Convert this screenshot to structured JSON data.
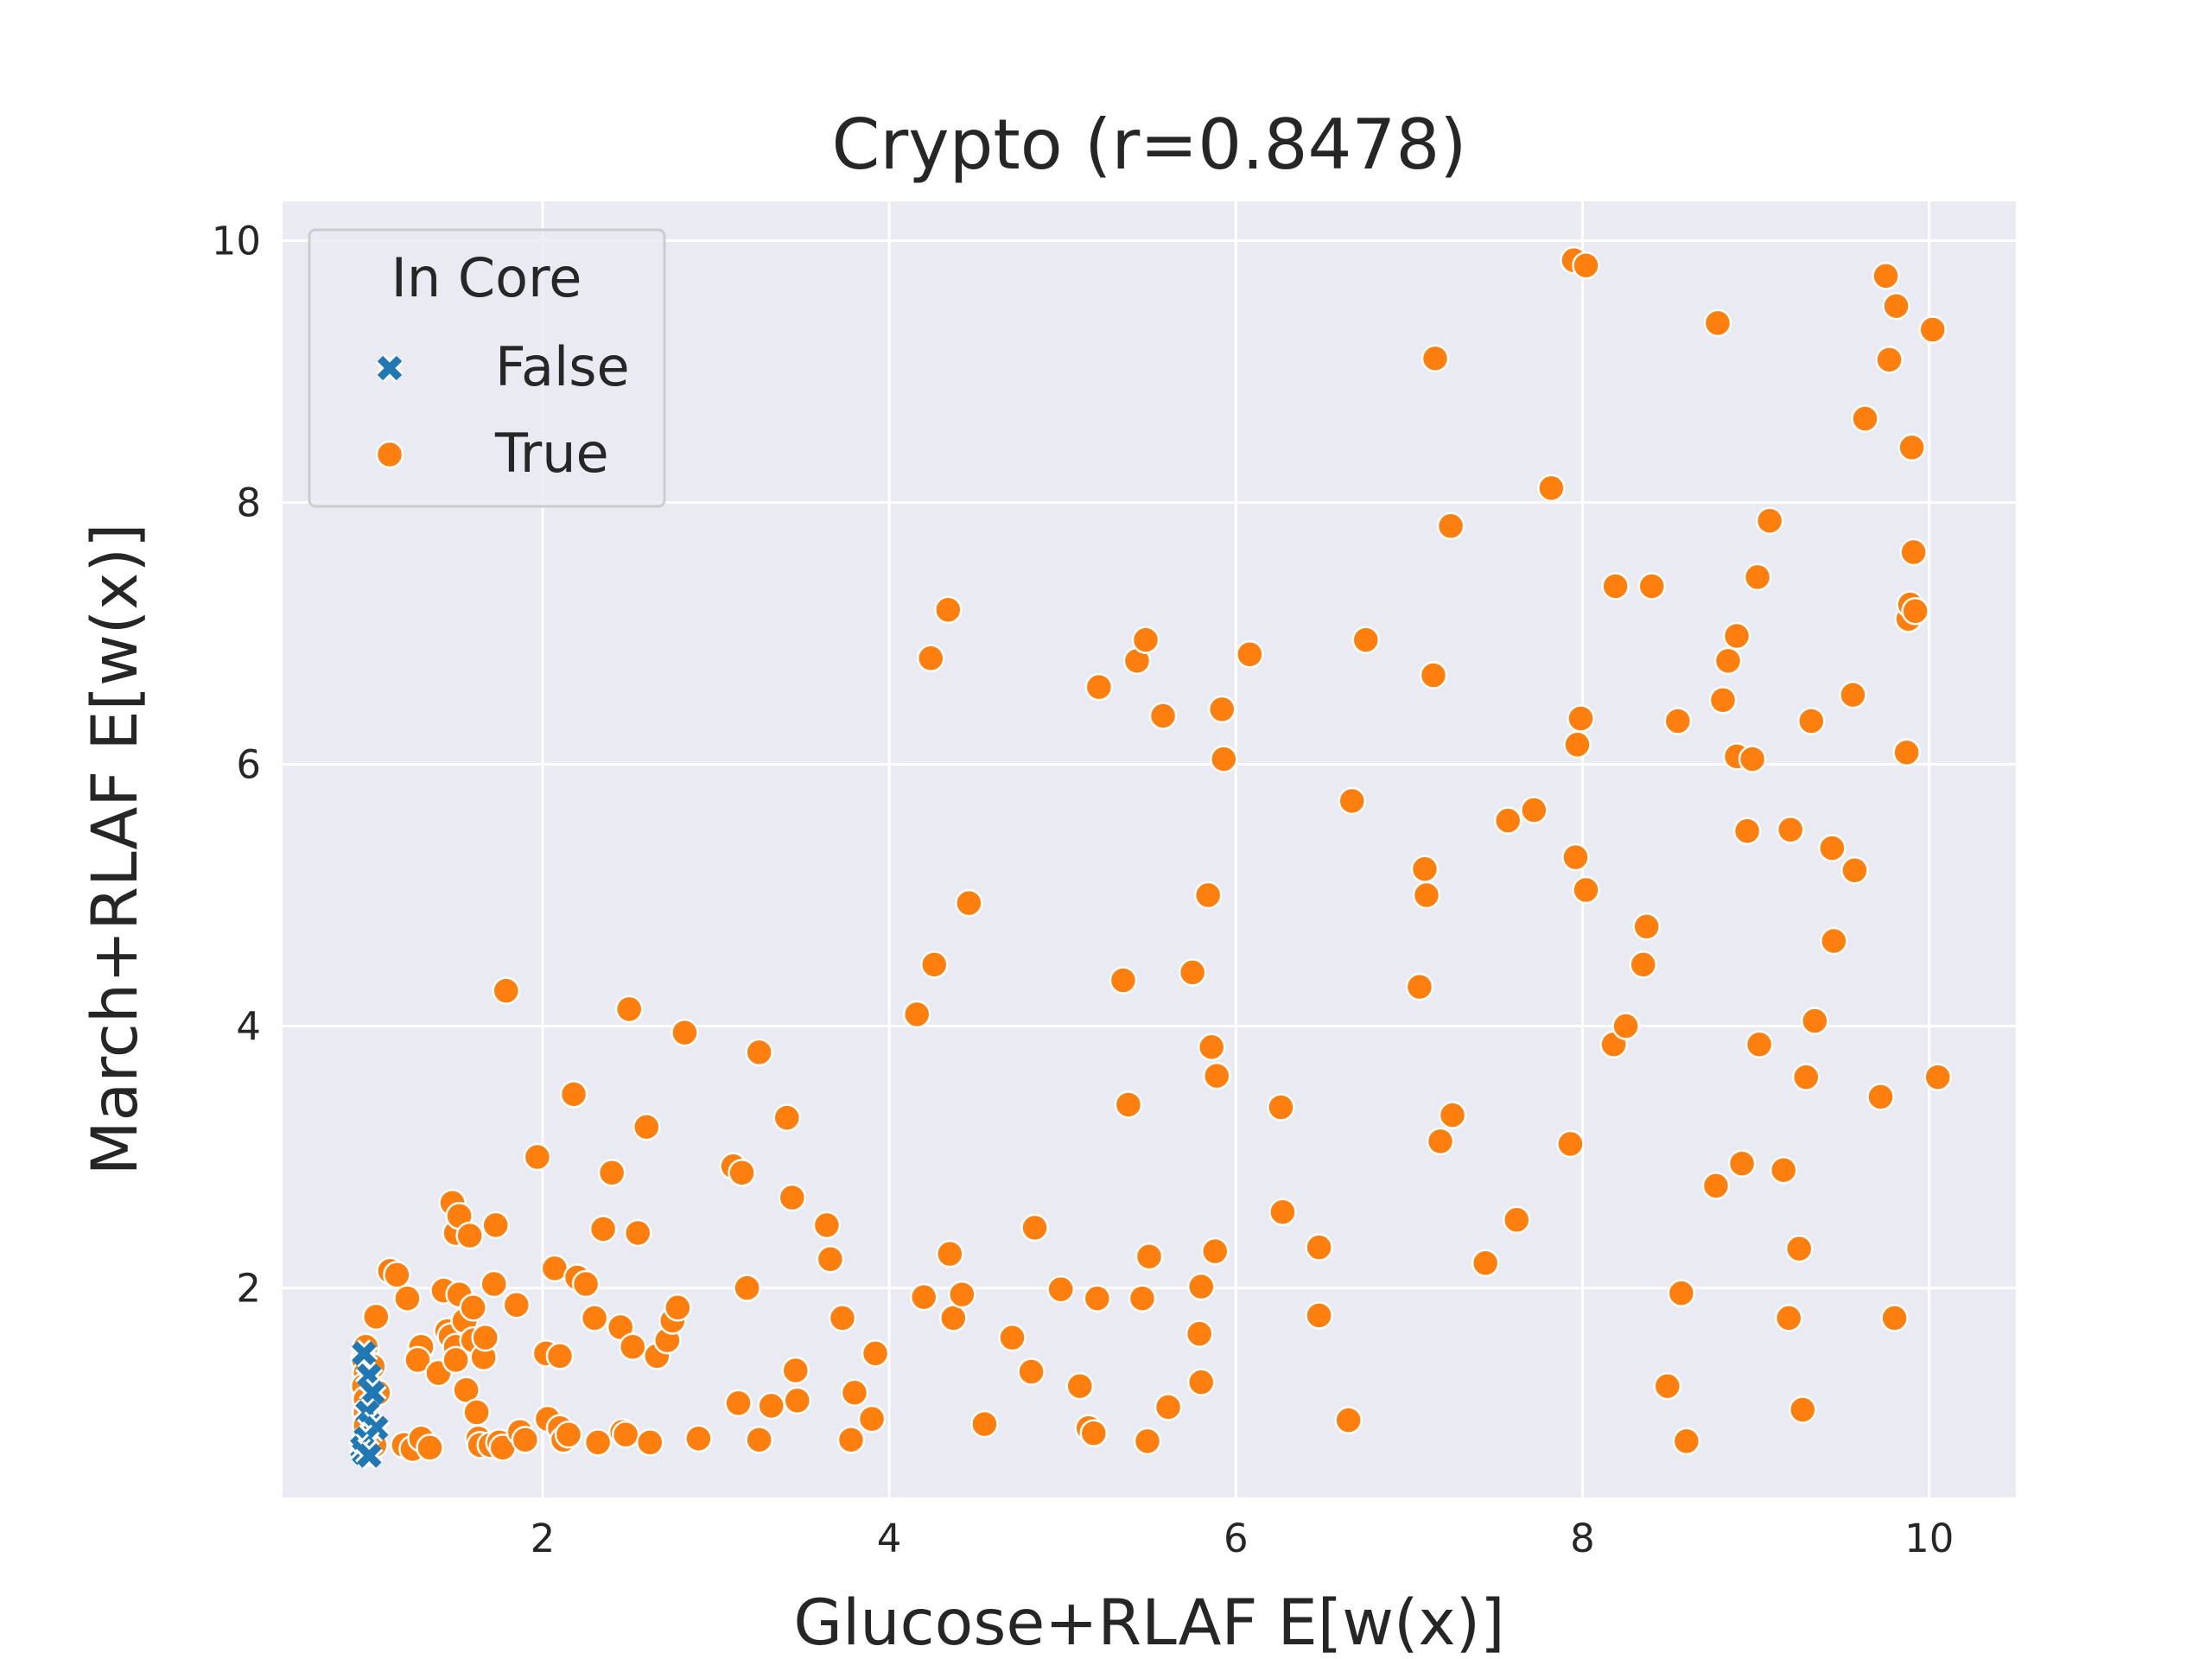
{
  "chart_data": {
    "type": "scatter",
    "title": "Crypto (r=0.8478)",
    "xlabel": "Glucose+RLAF E[w(x)]",
    "ylabel": "March+RLAF E[w(x)]",
    "xlim": [
      0.5,
      10.5
    ],
    "ylim": [
      0.4,
      10.3
    ],
    "x_ticks": [
      "2",
      "4",
      "6",
      "8",
      "10"
    ],
    "x_tick_values": [
      2,
      4,
      6,
      8,
      10
    ],
    "y_ticks": [
      "2",
      "4",
      "6",
      "8",
      "10"
    ],
    "y_tick_values": [
      2,
      4,
      6,
      8,
      10
    ],
    "grid": true,
    "background": "#eaeaf2",
    "legend": {
      "title": "In Core",
      "placement": "top-left",
      "entries": [
        {
          "label": "False",
          "marker": "x",
          "color": "#1f77b4"
        },
        {
          "label": "True",
          "marker": "circle",
          "color": "#ff7f0e"
        }
      ]
    },
    "series": [
      {
        "name": "False",
        "marker": "x",
        "color": "#1f77b4",
        "points": [
          [
            0.97,
            1.5
          ],
          [
            1.0,
            1.33
          ],
          [
            1.02,
            1.2
          ],
          [
            0.99,
            1.05
          ],
          [
            1.01,
            0.95
          ],
          [
            1.04,
            0.93
          ],
          [
            0.98,
            0.85
          ],
          [
            0.96,
            0.78
          ],
          [
            0.97,
            0.74
          ],
          [
            1.0,
            0.72
          ]
        ]
      },
      {
        "name": "True",
        "marker": "circle",
        "color": "#ff7f0e",
        "points": [
          [
            0.98,
            1.55
          ],
          [
            0.97,
            1.45
          ],
          [
            0.98,
            1.35
          ],
          [
            0.97,
            1.25
          ],
          [
            0.98,
            1.15
          ],
          [
            0.98,
            1.05
          ],
          [
            0.98,
            0.95
          ],
          [
            0.98,
            0.85
          ],
          [
            0.98,
            0.76
          ],
          [
            1.02,
            1.4
          ],
          [
            1.05,
            1.2
          ],
          [
            1.03,
            0.8
          ],
          [
            1.04,
            1.78
          ],
          [
            1.12,
            2.13
          ],
          [
            1.16,
            2.1
          ],
          [
            1.22,
            1.92
          ],
          [
            1.3,
            1.55
          ],
          [
            1.28,
            1.45
          ],
          [
            1.2,
            0.8
          ],
          [
            1.25,
            0.77
          ],
          [
            1.3,
            0.85
          ],
          [
            1.35,
            0.78
          ],
          [
            1.4,
            1.35
          ],
          [
            1.43,
            1.98
          ],
          [
            1.45,
            1.67
          ],
          [
            1.47,
            1.63
          ],
          [
            1.48,
            2.65
          ],
          [
            1.5,
            2.42
          ],
          [
            1.52,
            2.55
          ],
          [
            1.5,
            1.55
          ],
          [
            1.5,
            1.45
          ],
          [
            1.52,
            1.95
          ],
          [
            1.55,
            1.75
          ],
          [
            1.56,
            1.22
          ],
          [
            1.58,
            2.4
          ],
          [
            1.6,
            1.85
          ],
          [
            1.6,
            1.6
          ],
          [
            1.62,
            1.05
          ],
          [
            1.63,
            0.85
          ],
          [
            1.64,
            0.8
          ],
          [
            1.66,
            1.47
          ],
          [
            1.67,
            1.62
          ],
          [
            1.7,
            0.8
          ],
          [
            1.72,
            2.03
          ],
          [
            1.73,
            2.48
          ],
          [
            1.75,
            0.82
          ],
          [
            1.77,
            0.78
          ],
          [
            1.79,
            4.27
          ],
          [
            1.85,
            1.87
          ],
          [
            1.87,
            0.9
          ],
          [
            1.9,
            0.84
          ],
          [
            1.97,
            3.0
          ],
          [
            2.02,
            1.5
          ],
          [
            2.03,
            1.0
          ],
          [
            2.07,
            2.15
          ],
          [
            2.1,
            1.48
          ],
          [
            2.1,
            0.93
          ],
          [
            2.12,
            0.84
          ],
          [
            2.15,
            0.88
          ],
          [
            2.18,
            3.48
          ],
          [
            2.2,
            2.08
          ],
          [
            2.25,
            2.03
          ],
          [
            2.3,
            1.77
          ],
          [
            2.32,
            0.82
          ],
          [
            2.35,
            2.45
          ],
          [
            2.4,
            2.88
          ],
          [
            2.45,
            1.7
          ],
          [
            2.46,
            0.9
          ],
          [
            2.48,
            0.88
          ],
          [
            2.5,
            4.13
          ],
          [
            2.52,
            1.55
          ],
          [
            2.55,
            2.42
          ],
          [
            2.6,
            3.23
          ],
          [
            2.62,
            0.82
          ],
          [
            2.66,
            1.48
          ],
          [
            2.72,
            1.6
          ],
          [
            2.75,
            1.75
          ],
          [
            2.78,
            1.85
          ],
          [
            2.82,
            3.95
          ],
          [
            2.9,
            0.85
          ],
          [
            3.1,
            2.93
          ],
          [
            3.13,
            1.12
          ],
          [
            3.15,
            2.88
          ],
          [
            3.18,
            2.0
          ],
          [
            3.25,
            3.8
          ],
          [
            3.25,
            0.84
          ],
          [
            3.32,
            1.1
          ],
          [
            3.41,
            3.3
          ],
          [
            3.44,
            2.69
          ],
          [
            3.46,
            1.37
          ],
          [
            3.47,
            1.14
          ],
          [
            3.64,
            2.48
          ],
          [
            3.66,
            2.22
          ],
          [
            3.73,
            1.77
          ],
          [
            3.78,
            0.84
          ],
          [
            3.8,
            1.2
          ],
          [
            3.9,
            1.0
          ],
          [
            3.92,
            1.5
          ],
          [
            4.16,
            4.09
          ],
          [
            4.2,
            1.93
          ],
          [
            4.24,
            6.81
          ],
          [
            4.26,
            4.47
          ],
          [
            4.34,
            7.18
          ],
          [
            4.35,
            2.26
          ],
          [
            4.37,
            1.77
          ],
          [
            4.42,
            1.95
          ],
          [
            4.46,
            4.94
          ],
          [
            4.55,
            0.96
          ],
          [
            4.71,
            1.62
          ],
          [
            4.82,
            1.36
          ],
          [
            4.84,
            2.46
          ],
          [
            4.99,
            1.99
          ],
          [
            5.1,
            1.25
          ],
          [
            5.15,
            0.93
          ],
          [
            5.18,
            0.89
          ],
          [
            5.2,
            1.92
          ],
          [
            5.21,
            6.59
          ],
          [
            5.35,
            4.35
          ],
          [
            5.38,
            3.4
          ],
          [
            5.43,
            6.79
          ],
          [
            5.46,
            1.92
          ],
          [
            5.48,
            6.95
          ],
          [
            5.49,
            0.83
          ],
          [
            5.5,
            2.24
          ],
          [
            5.58,
            6.37
          ],
          [
            5.61,
            1.09
          ],
          [
            5.75,
            4.41
          ],
          [
            5.79,
            1.65
          ],
          [
            5.8,
            2.01
          ],
          [
            5.8,
            1.28
          ],
          [
            5.84,
            5.0
          ],
          [
            5.86,
            3.84
          ],
          [
            5.88,
            2.28
          ],
          [
            5.89,
            3.62
          ],
          [
            5.92,
            6.42
          ],
          [
            5.93,
            6.04
          ],
          [
            6.08,
            6.84
          ],
          [
            6.26,
            3.38
          ],
          [
            6.27,
            2.58
          ],
          [
            6.48,
            2.31
          ],
          [
            6.48,
            1.79
          ],
          [
            6.65,
            0.99
          ],
          [
            6.67,
            5.72
          ],
          [
            6.75,
            6.95
          ],
          [
            7.06,
            4.3
          ],
          [
            7.09,
            5.2
          ],
          [
            7.1,
            5.0
          ],
          [
            7.14,
            6.68
          ],
          [
            7.15,
            9.1
          ],
          [
            7.18,
            3.12
          ],
          [
            7.24,
            7.82
          ],
          [
            7.25,
            3.32
          ],
          [
            7.44,
            2.19
          ],
          [
            7.57,
            5.57
          ],
          [
            7.62,
            2.52
          ],
          [
            7.72,
            5.65
          ],
          [
            7.82,
            8.11
          ],
          [
            7.93,
            3.1
          ],
          [
            7.95,
            9.85
          ],
          [
            7.96,
            5.29
          ],
          [
            7.97,
            6.15
          ],
          [
            7.99,
            6.35
          ],
          [
            8.02,
            9.81
          ],
          [
            8.02,
            5.04
          ],
          [
            8.18,
            3.86
          ],
          [
            8.19,
            7.36
          ],
          [
            8.25,
            4.0
          ],
          [
            8.35,
            4.47
          ],
          [
            8.37,
            4.76
          ],
          [
            8.4,
            7.36
          ],
          [
            8.49,
            1.25
          ],
          [
            8.55,
            6.33
          ],
          [
            8.57,
            1.96
          ],
          [
            8.6,
            0.83
          ],
          [
            8.77,
            2.78
          ],
          [
            8.78,
            9.37
          ],
          [
            8.81,
            6.49
          ],
          [
            8.84,
            6.79
          ],
          [
            8.89,
            6.98
          ],
          [
            8.89,
            6.06
          ],
          [
            8.92,
            2.95
          ],
          [
            8.95,
            5.49
          ],
          [
            8.98,
            6.04
          ],
          [
            9.01,
            7.43
          ],
          [
            9.02,
            3.86
          ],
          [
            9.08,
            7.86
          ],
          [
            9.16,
            2.9
          ],
          [
            9.19,
            1.77
          ],
          [
            9.2,
            5.5
          ],
          [
            9.25,
            2.3
          ],
          [
            9.27,
            1.07
          ],
          [
            9.29,
            3.61
          ],
          [
            9.32,
            6.33
          ],
          [
            9.34,
            4.04
          ],
          [
            9.44,
            5.36
          ],
          [
            9.45,
            4.65
          ],
          [
            9.56,
            6.53
          ],
          [
            9.57,
            5.19
          ],
          [
            9.63,
            8.64
          ],
          [
            9.72,
            3.46
          ],
          [
            9.75,
            9.73
          ],
          [
            9.77,
            9.09
          ],
          [
            9.8,
            1.77
          ],
          [
            9.81,
            9.5
          ],
          [
            9.87,
            6.09
          ],
          [
            9.88,
            7.11
          ],
          [
            9.89,
            7.22
          ],
          [
            9.9,
            8.42
          ],
          [
            9.91,
            7.62
          ],
          [
            9.92,
            7.17
          ],
          [
            10.02,
            9.32
          ],
          [
            10.05,
            3.61
          ]
        ]
      }
    ]
  }
}
